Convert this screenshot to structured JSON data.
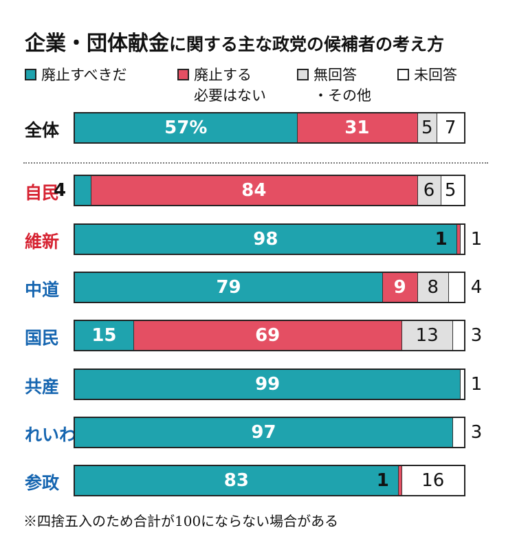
{
  "chart_data": {
    "type": "bar",
    "orientation": "horizontal",
    "stacked": true,
    "title": "企業・団体献金に関する主な政党の候補者の考え方",
    "title_emphasis": "企業・団体献金",
    "title_rest": "に関する主な政党の候補者の考え方",
    "xlim": [
      0,
      100
    ],
    "grid": false,
    "legend_position": "top",
    "legend": [
      {
        "key": "abolish",
        "lines": [
          "廃止すべきだ"
        ],
        "color": "#1fa3ae"
      },
      {
        "key": "not_needed",
        "lines": [
          "廃止する",
          "必要はない"
        ],
        "color": "#e44f63"
      },
      {
        "key": "no_answer_other",
        "lines": [
          "無回答",
          "・その他"
        ],
        "color": "#e0e0e0"
      },
      {
        "key": "unanswered",
        "lines": [
          "未回答"
        ],
        "color": "#ffffff"
      }
    ],
    "categories": [
      "全体",
      "自民",
      "維新",
      "中道",
      "国民",
      "共産",
      "れいわ",
      "参政"
    ],
    "category_colors": [
      "#111111",
      "#d62231",
      "#d62231",
      "#1565b0",
      "#1565b0",
      "#1565b0",
      "#1565b0",
      "#1565b0"
    ],
    "series": [
      {
        "name": "廃止すべきだ",
        "values": [
          57,
          4,
          98,
          79,
          15,
          99,
          97,
          83
        ]
      },
      {
        "name": "廃止する必要はない",
        "values": [
          31,
          84,
          1,
          9,
          69,
          0,
          0,
          1
        ]
      },
      {
        "name": "無回答・その他",
        "values": [
          5,
          6,
          0,
          8,
          13,
          0,
          0,
          0
        ]
      },
      {
        "name": "未回答",
        "values": [
          7,
          5,
          1,
          4,
          3,
          1,
          3,
          16
        ]
      }
    ],
    "data_labels": [
      [
        "57%",
        "31",
        "5",
        "7"
      ],
      [
        "4",
        "84",
        "6",
        "5"
      ],
      [
        "98",
        "1",
        "",
        "1"
      ],
      [
        "79",
        "9",
        "8",
        "4"
      ],
      [
        "15",
        "69",
        "13",
        "3"
      ],
      [
        "99",
        "",
        "",
        "1"
      ],
      [
        "97",
        "",
        "",
        "3"
      ],
      [
        "83",
        "1",
        "",
        "16"
      ]
    ],
    "footnote": "※四捨五入のため合計が100にならない場合がある"
  }
}
